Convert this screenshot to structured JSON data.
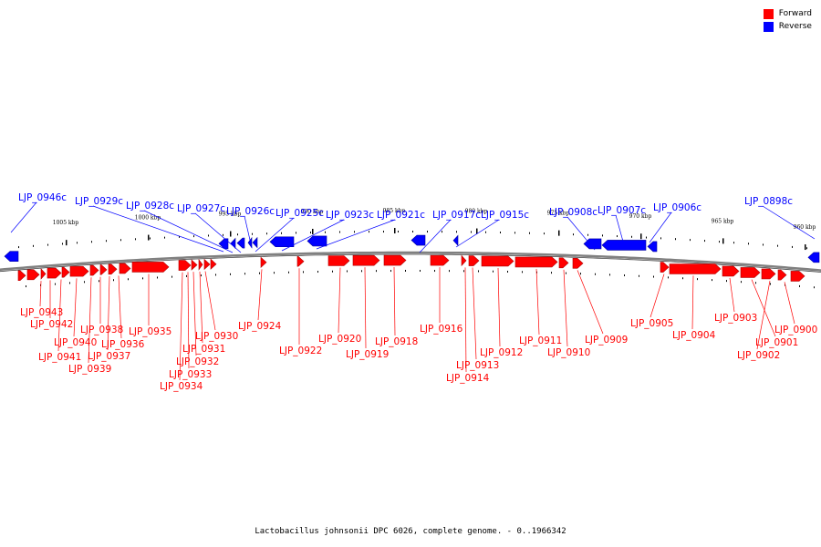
{
  "caption": "Lactobacillus johnsonii DPC 6026, complete genome. - 0..1966342",
  "legend": [
    {
      "label": "Forward",
      "color": "#ff0000"
    },
    {
      "label": "Reverse",
      "color": "#0000ff"
    }
  ],
  "colors": {
    "forward": "#ff0000",
    "forward_dark": "#b00000",
    "reverse": "#0000ff",
    "reverse_dark": "#0000a0",
    "backbone": "#808080"
  },
  "scale_labels": [
    "1005 kbp",
    "1000 kbp",
    "995 kbp",
    "990 kbp",
    "985 kbp",
    "980 kbp",
    "975 kbp",
    "970 kbp",
    "965 kbp",
    "960 kbp"
  ],
  "reverse_labels": [
    "LJP_0946c",
    "LJP_0929c",
    "LJP_0928c",
    "LJP_0927c",
    "LJP_0926c",
    "LJP_0925c",
    "LJP_0923c",
    "LJP_0921c",
    "LJP_0917c",
    "LJP_0915c",
    "LJP_0908c",
    "LJP_0907c",
    "LJP_0906c",
    "LJP_0898c"
  ],
  "forward_labels": [
    "LJP_0943",
    "LJP_0942",
    "LJP_0941",
    "LJP_0940",
    "LJP_0939",
    "LJP_0938",
    "LJP_0937",
    "LJP_0936",
    "LJP_0935",
    "LJP_0934",
    "LJP_0933",
    "LJP_0932",
    "LJP_0931",
    "LJP_0930",
    "LJP_0924",
    "LJP_0922",
    "LJP_0920",
    "LJP_0919",
    "LJP_0918",
    "LJP_0916",
    "LJP_0914",
    "LJP_0913",
    "LJP_0912",
    "LJP_0911",
    "LJP_0910",
    "LJP_0909",
    "LJP_0905",
    "LJP_0904",
    "LJP_0903",
    "LJP_0901",
    "LJP_0902",
    "LJP_0900"
  ]
}
